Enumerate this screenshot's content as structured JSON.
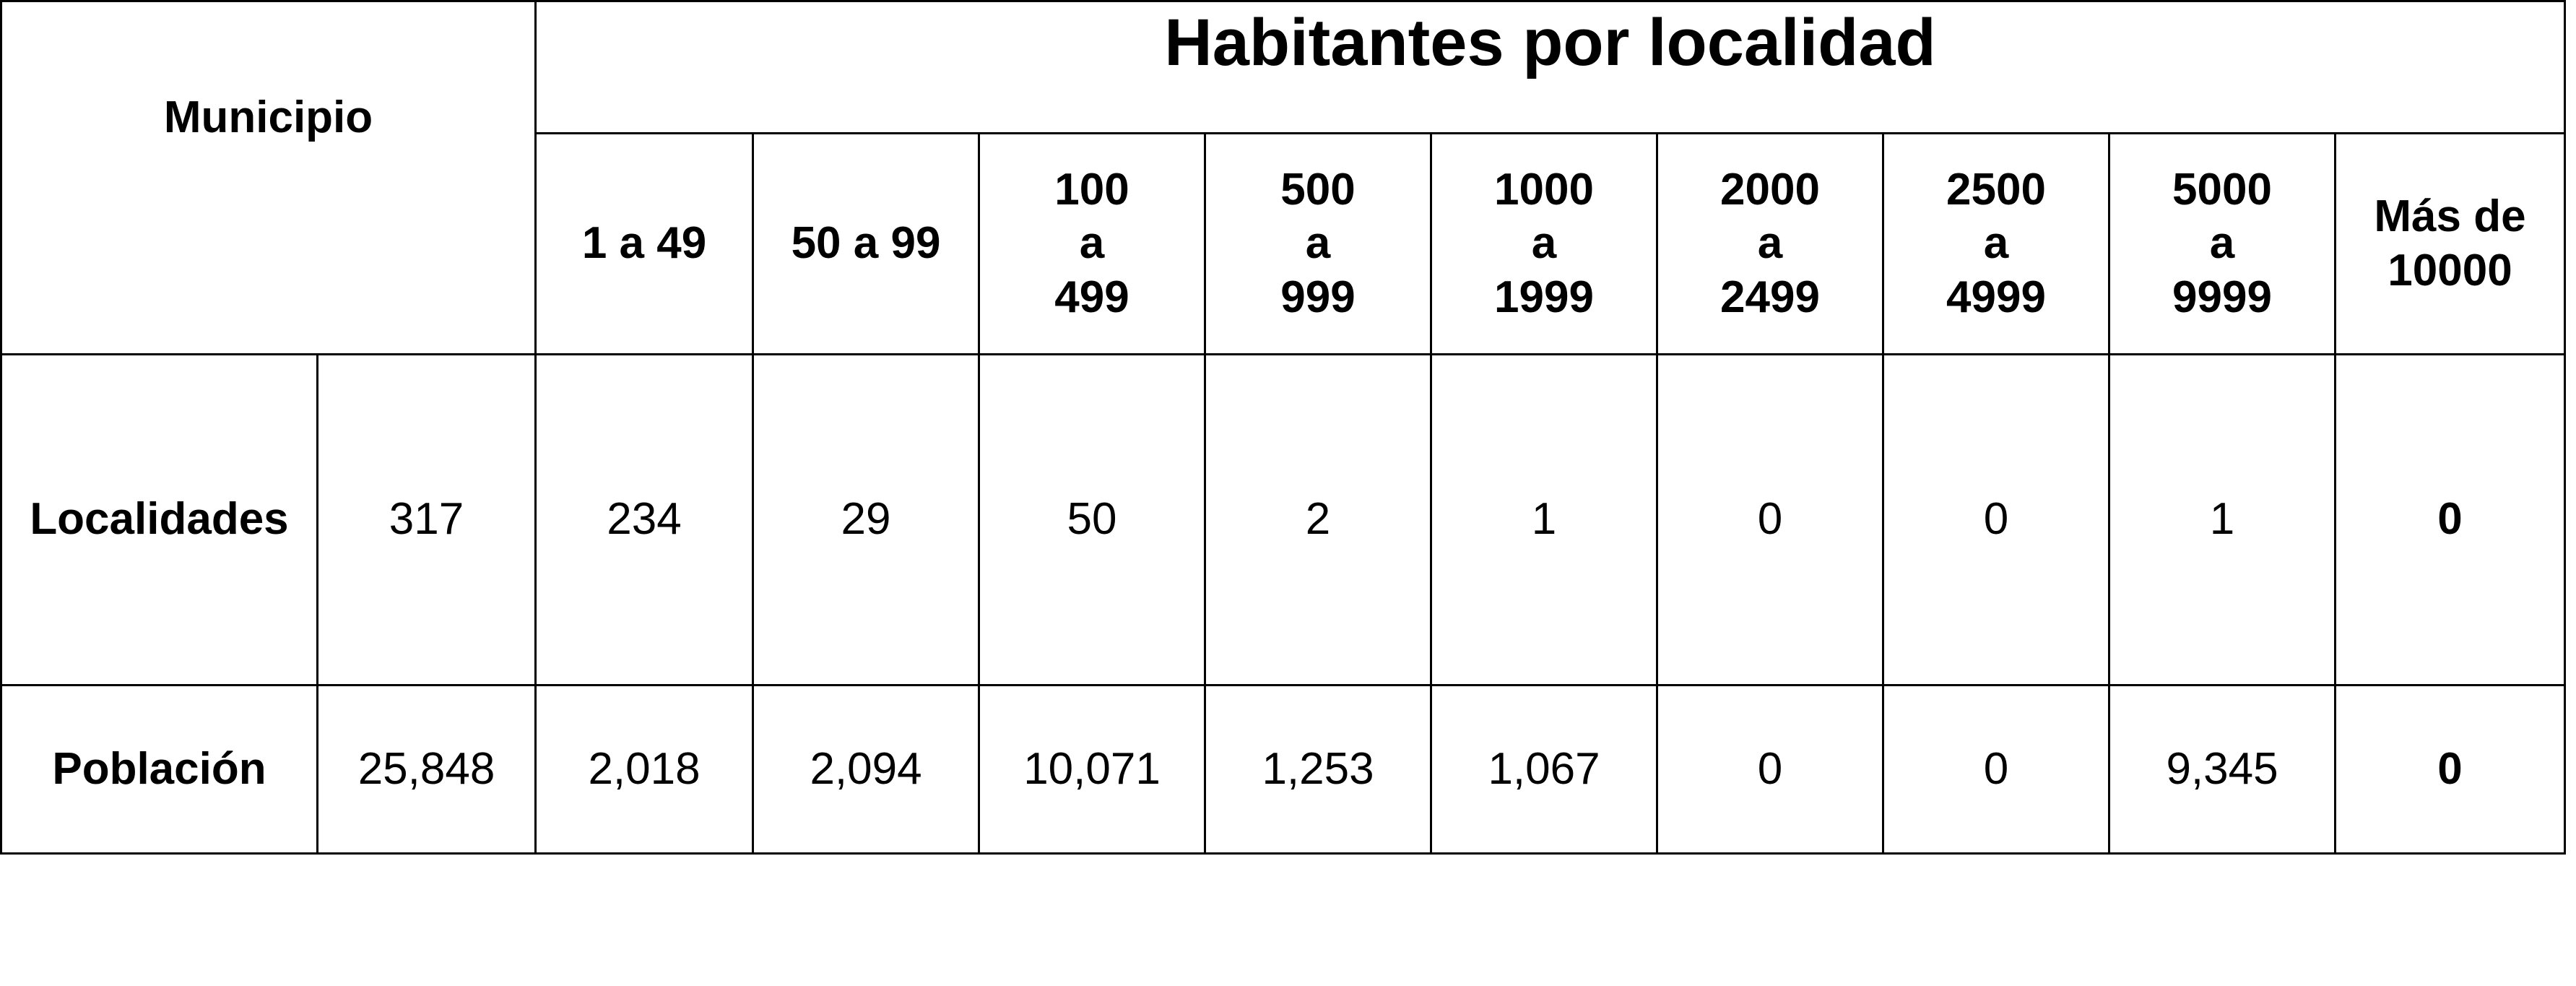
{
  "table": {
    "title": "Habitantes por localidad",
    "municipio_header": "Municipio",
    "ranges": [
      {
        "lines": [
          "1 a 49"
        ]
      },
      {
        "lines": [
          "50 a 99"
        ]
      },
      {
        "lines": [
          "100",
          "a",
          "499"
        ]
      },
      {
        "lines": [
          "500",
          "a",
          "999"
        ]
      },
      {
        "lines": [
          "1000",
          "a",
          "1999"
        ]
      },
      {
        "lines": [
          "2000",
          "a",
          "2499"
        ]
      },
      {
        "lines": [
          "2500",
          "a",
          "4999"
        ]
      },
      {
        "lines": [
          "5000",
          "a",
          "9999"
        ]
      },
      {
        "lines": [
          "Más de",
          "10000"
        ]
      }
    ],
    "rows": [
      {
        "label": "Localidades",
        "total": "317",
        "values": [
          "234",
          "29",
          "50",
          "2",
          "1",
          "0",
          "0",
          "1",
          "0"
        ]
      },
      {
        "label": "Población",
        "total": "25,848",
        "values": [
          "2,018",
          "2,094",
          "10,071",
          "1,253",
          "1,067",
          "0",
          "0",
          "9,345",
          "0"
        ]
      }
    ]
  }
}
